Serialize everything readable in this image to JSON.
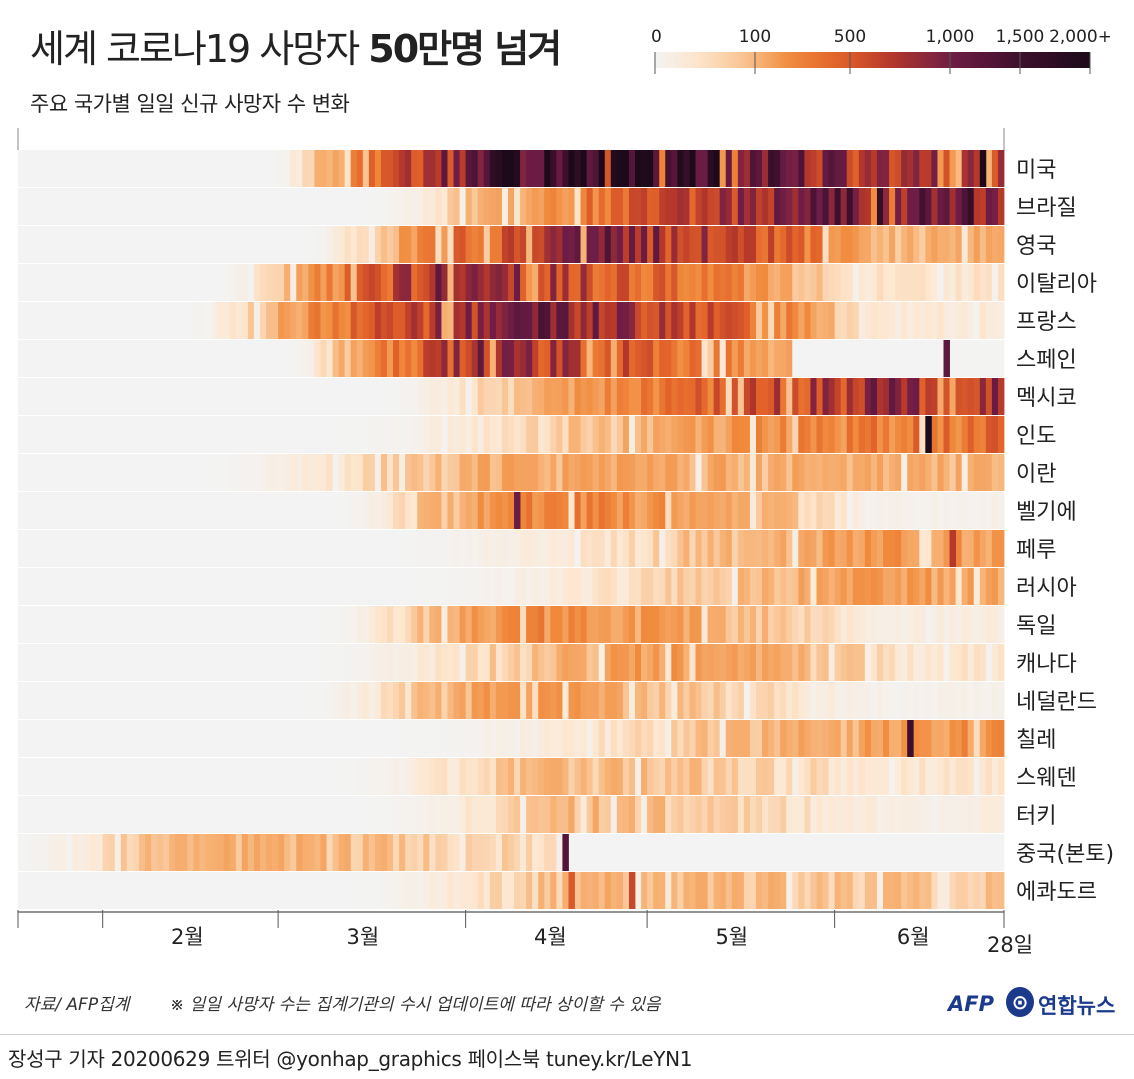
{
  "header": {
    "title_plain": "세계 코로나19 사망자 ",
    "title_bold": "50만명 넘겨",
    "subtitle": "주요 국가별 일일 신규 사망자 수 변화"
  },
  "legend": {
    "ticks": [
      "0",
      "100",
      "500",
      "1,000",
      "1,500",
      "2,000+"
    ],
    "tick_values": [
      0,
      100,
      500,
      1000,
      1500,
      2000
    ]
  },
  "colors": {
    "scale": [
      "#f3f3f3",
      "#fde7d0",
      "#f7b478",
      "#f08a3c",
      "#e2622a",
      "#b6382a",
      "#6f1d46",
      "#3d0f2d",
      "#1c0a1a"
    ],
    "no_data": "#f3f3f3"
  },
  "chart_data": {
    "type": "heatmap",
    "title": "세계 코로나19 사망자 50만명 넘겨",
    "subtitle": "주요 국가별 일일 신규 사망자 수 변화",
    "x_labels": [
      "2월",
      "3월",
      "4월",
      "5월",
      "6월",
      "28일"
    ],
    "x_range": [
      "2020-01-18",
      "2020-06-28"
    ],
    "value_range": [
      0,
      2000
    ],
    "rows": [
      {
        "country": "미국",
        "start": "2020-02-29",
        "peak": "2020-04-17",
        "level": 2000,
        "late": 700,
        "spikes": [
          {
            "date": "2020-06-25",
            "value": 2400
          }
        ]
      },
      {
        "country": "브라질",
        "start": "2020-03-17",
        "peak": "2020-06-05",
        "level": 1250,
        "late": 1100,
        "spikes": []
      },
      {
        "country": "영국",
        "start": "2020-03-06",
        "peak": "2020-04-21",
        "level": 1000,
        "late": 130,
        "spikes": []
      },
      {
        "country": "이탈리아",
        "start": "2020-02-21",
        "peak": "2020-03-28",
        "level": 900,
        "late": 40,
        "spikes": []
      },
      {
        "country": "프랑스",
        "start": "2020-02-15",
        "peak": "2020-04-08",
        "level": 1100,
        "late": 30,
        "spikes": []
      },
      {
        "country": "스페인",
        "start": "2020-03-03",
        "peak": "2020-04-02",
        "level": 850,
        "late": 0,
        "spikes": [
          {
            "date": "2020-06-19",
            "value": 1180
          }
        ]
      },
      {
        "country": "멕시코",
        "start": "2020-03-19",
        "peak": "2020-06-09",
        "level": 850,
        "late": 750,
        "spikes": []
      },
      {
        "country": "인도",
        "start": "2020-03-12",
        "peak": "2020-06-17",
        "level": 380,
        "late": 380,
        "spikes": [
          {
            "date": "2020-06-16",
            "value": 2000
          }
        ]
      },
      {
        "country": "이란",
        "start": "2020-02-19",
        "peak": "2020-04-05",
        "level": 150,
        "late": 130,
        "spikes": []
      },
      {
        "country": "벨기에",
        "start": "2020-03-11",
        "peak": "2020-04-12",
        "level": 320,
        "late": 10,
        "spikes": [
          {
            "date": "2020-04-09",
            "value": 1050
          }
        ]
      },
      {
        "country": "페루",
        "start": "2020-03-20",
        "peak": "2020-06-10",
        "level": 200,
        "late": 190,
        "spikes": [
          {
            "date": "2020-06-20",
            "value": 700
          }
        ]
      },
      {
        "country": "러시아",
        "start": "2020-03-25",
        "peak": "2020-06-10",
        "level": 180,
        "late": 160,
        "spikes": []
      },
      {
        "country": "독일",
        "start": "2020-03-09",
        "peak": "2020-04-10",
        "level": 270,
        "late": 20,
        "spikes": []
      },
      {
        "country": "캐나다",
        "start": "2020-03-09",
        "peak": "2020-05-01",
        "level": 200,
        "late": 40,
        "spikes": []
      },
      {
        "country": "네덜란드",
        "start": "2020-03-06",
        "peak": "2020-04-07",
        "level": 200,
        "late": 10,
        "spikes": []
      },
      {
        "country": "칠레",
        "start": "2020-03-22",
        "peak": "2020-06-25",
        "level": 230,
        "late": 230,
        "spikes": [
          {
            "date": "2020-06-13",
            "value": 1500
          }
        ]
      },
      {
        "country": "스웨덴",
        "start": "2020-03-11",
        "peak": "2020-04-15",
        "level": 120,
        "late": 40,
        "spikes": []
      },
      {
        "country": "터키",
        "start": "2020-03-17",
        "peak": "2020-04-20",
        "level": 120,
        "late": 20,
        "spikes": []
      },
      {
        "country": "중국(본토)",
        "start": "2020-01-18",
        "peak": "2020-02-15",
        "level": 140,
        "late": 0,
        "spikes": [
          {
            "date": "2020-04-17",
            "value": 1290
          }
        ]
      },
      {
        "country": "에콰도르",
        "start": "2020-03-14",
        "peak": "2020-04-20",
        "level": 120,
        "late": 90,
        "spikes": [
          {
            "date": "2020-04-18",
            "value": 500
          },
          {
            "date": "2020-04-28",
            "value": 600
          }
        ]
      }
    ]
  },
  "footer": {
    "source": "자료/ AFP집계",
    "note": "※ 일일 사망자 수는 집계기관의 수시 업데이트에 따라 상이할 수 있음",
    "afp": "AFP",
    "yonhap_mark": "⊙",
    "yonhap": "연합뉴스",
    "credit": "장성구 기자  20200629  트위터 @yonhap_graphics  페이스북 tuney.kr/LeYN1"
  }
}
